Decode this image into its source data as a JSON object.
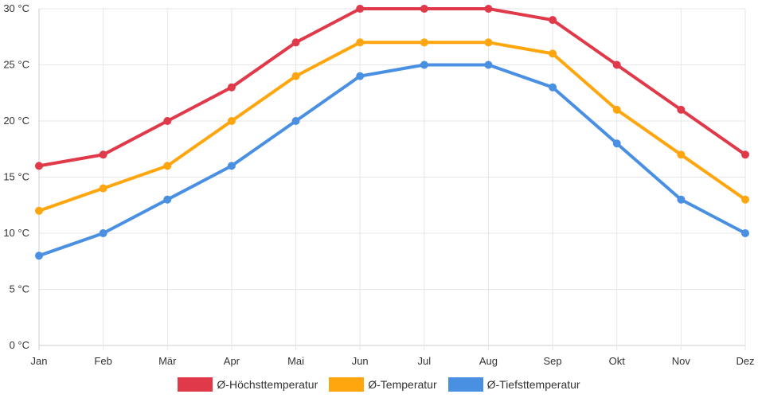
{
  "chart_data": {
    "type": "line",
    "categories": [
      "Jan",
      "Feb",
      "Mär",
      "Apr",
      "Mai",
      "Jun",
      "Jul",
      "Aug",
      "Sep",
      "Okt",
      "Nov",
      "Dez"
    ],
    "series": [
      {
        "name": "Ø-Höchsttemperatur",
        "color": "#e0394a",
        "values": [
          16,
          17,
          20,
          23,
          27,
          30,
          30,
          30,
          29,
          25,
          21,
          17
        ]
      },
      {
        "name": "Ø-Temperatur",
        "color": "#ffa60f",
        "values": [
          12,
          14,
          16,
          20,
          24,
          27,
          27,
          27,
          26,
          21,
          17,
          13
        ]
      },
      {
        "name": "Ø-Tiefsttemperatur",
        "color": "#4a90e2",
        "values": [
          8,
          10,
          13,
          16,
          20,
          24,
          25,
          25,
          23,
          18,
          13,
          10
        ]
      }
    ],
    "yticks": [
      0,
      5,
      10,
      15,
      20,
      25,
      30
    ],
    "ytick_labels": [
      "0 °C",
      "5 °C",
      "10 °C",
      "15 °C",
      "20 °C",
      "25 °C",
      "30 °C"
    ],
    "ylim": [
      0,
      30
    ],
    "grid": true,
    "legend_position": "bottom"
  }
}
